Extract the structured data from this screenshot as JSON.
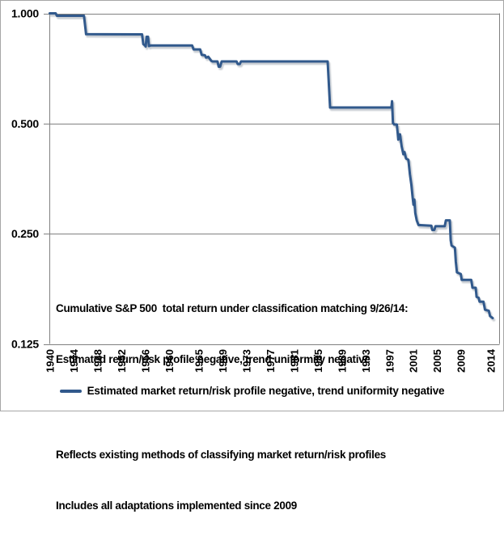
{
  "chart_data": {
    "type": "line",
    "title": "",
    "grid": true,
    "y_axis": {
      "scale": "log",
      "tick_labels": [
        "1.000",
        "0.500",
        "0.250",
        "0.125"
      ],
      "range_top": 1.0,
      "range_bottom": 0.125
    },
    "x_axis": {
      "tick_labels": [
        "1940",
        "1944",
        "1948",
        "1952",
        "1956",
        "1960",
        "1965",
        "1969",
        "1973",
        "1977",
        "1981",
        "1985",
        "1989",
        "1993",
        "1997",
        "2001",
        "2005",
        "2009",
        "2014"
      ],
      "range": [
        1940,
        2015.5
      ],
      "label_rotation_degrees": -90
    },
    "legend": {
      "position": "bottom-center",
      "label": "Estimated market return/risk profile negative, trend uniformity negative"
    },
    "annotation": {
      "para1": [
        "Cumulative S&P 500  total return under classification matching 9/26/14:",
        "Estimated return/risk profile negative, trend uniformity negative"
      ],
      "para2": [
        "Reflects existing methods of classifying market return/risk profiles",
        "Includes all adaptations implemented since 2009"
      ]
    },
    "series": [
      {
        "name": "Estimated market return/risk profile negative, trend uniformity negative",
        "color": "#31598C",
        "points": [
          [
            1940.0,
            1.0
          ],
          [
            1941.0,
            1.0
          ],
          [
            1941.2,
            0.985
          ],
          [
            1945.75,
            0.985
          ],
          [
            1946.1,
            0.877
          ],
          [
            1955.5,
            0.876
          ],
          [
            1955.7,
            0.824
          ],
          [
            1955.95,
            0.818
          ],
          [
            1956.1,
            0.812
          ],
          [
            1956.25,
            0.863
          ],
          [
            1956.5,
            0.863
          ],
          [
            1956.65,
            0.814
          ],
          [
            1956.9,
            0.817
          ],
          [
            1963.9,
            0.817
          ],
          [
            1964.15,
            0.797
          ],
          [
            1965.25,
            0.797
          ],
          [
            1965.5,
            0.77
          ],
          [
            1966.05,
            0.768
          ],
          [
            1966.25,
            0.757
          ],
          [
            1966.6,
            0.761
          ],
          [
            1967.1,
            0.742
          ],
          [
            1967.3,
            0.739
          ],
          [
            1968.15,
            0.739
          ],
          [
            1968.35,
            0.715
          ],
          [
            1968.6,
            0.715
          ],
          [
            1968.85,
            0.739
          ],
          [
            1971.35,
            0.739
          ],
          [
            1971.55,
            0.727
          ],
          [
            1971.9,
            0.727
          ],
          [
            1972.1,
            0.739
          ],
          [
            1986.65,
            0.739
          ],
          [
            1987.05,
            0.553
          ],
          [
            1997.35,
            0.553
          ],
          [
            1997.45,
            0.575
          ],
          [
            1997.6,
            0.502
          ],
          [
            1997.8,
            0.497
          ],
          [
            1998.25,
            0.497
          ],
          [
            1998.4,
            0.47
          ],
          [
            1998.5,
            0.452
          ],
          [
            1998.65,
            0.467
          ],
          [
            1998.8,
            0.467
          ],
          [
            1999.05,
            0.434
          ],
          [
            1999.35,
            0.412
          ],
          [
            1999.55,
            0.418
          ],
          [
            1999.8,
            0.401
          ],
          [
            2000.2,
            0.398
          ],
          [
            2000.45,
            0.363
          ],
          [
            2000.7,
            0.34
          ],
          [
            2000.9,
            0.315
          ],
          [
            2001.05,
            0.3
          ],
          [
            2001.2,
            0.31
          ],
          [
            2001.35,
            0.285
          ],
          [
            2001.6,
            0.272
          ],
          [
            2001.9,
            0.264
          ],
          [
            2004.05,
            0.263
          ],
          [
            2004.2,
            0.256
          ],
          [
            2004.55,
            0.256
          ],
          [
            2004.75,
            0.262
          ],
          [
            2006.3,
            0.262
          ],
          [
            2006.5,
            0.272
          ],
          [
            2007.15,
            0.272
          ],
          [
            2007.3,
            0.24
          ],
          [
            2007.45,
            0.232
          ],
          [
            2008.0,
            0.229
          ],
          [
            2008.15,
            0.21
          ],
          [
            2008.35,
            0.196
          ],
          [
            2009.0,
            0.194
          ],
          [
            2009.15,
            0.187
          ],
          [
            2010.75,
            0.187
          ],
          [
            2010.95,
            0.178
          ],
          [
            2011.5,
            0.178
          ],
          [
            2011.65,
            0.168
          ],
          [
            2012.0,
            0.167
          ],
          [
            2012.15,
            0.163
          ],
          [
            2012.8,
            0.163
          ],
          [
            2013.05,
            0.155
          ],
          [
            2013.7,
            0.154
          ],
          [
            2013.9,
            0.149
          ],
          [
            2014.35,
            0.147
          ]
        ]
      }
    ],
    "colors": {
      "line": "#31598C",
      "grid": "#808080",
      "text": "#000000",
      "frame_border": "#A6A6A6",
      "line_shadow": "#98A0AC"
    }
  }
}
